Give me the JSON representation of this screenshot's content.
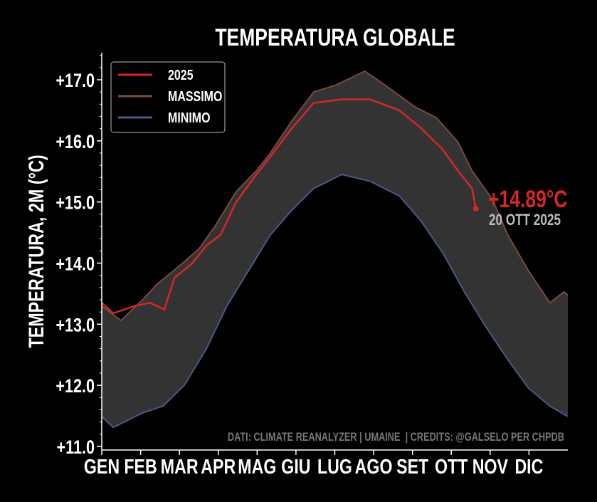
{
  "chart_data": {
    "type": "line",
    "title": "TEMPERATURA GLOBALE",
    "xlabel": "",
    "ylabel": "TEMPERATURA, 2M (°C)",
    "ylim": [
      11.0,
      17.0
    ],
    "xlim": [
      0,
      365
    ],
    "yticks": [
      11.0,
      12.0,
      13.0,
      14.0,
      15.0,
      16.0,
      17.0
    ],
    "ytick_labels": [
      "+11.0",
      "+12.0",
      "+13.0",
      "+14.0",
      "+15.0",
      "+16.0",
      "+17.0"
    ],
    "xtick_labels": [
      "GEN",
      "FEB",
      "MAR",
      "APR",
      "MAG",
      "GIU",
      "LUG",
      "AGO",
      "SET",
      "OTT",
      "NOV",
      "DIC"
    ],
    "legend": {
      "placement": "top-left",
      "entries": [
        "2025",
        "MASSIMO",
        "MINIMO"
      ]
    },
    "colors": {
      "2025": "#d62728",
      "massimo": "#7a4a3e",
      "minimo": "#4a5a85",
      "band": "#333333"
    },
    "series": [
      {
        "name": "2025",
        "x": [
          0,
          9,
          26,
          38,
          49,
          57,
          71,
          82,
          93,
          105,
          121,
          132,
          149,
          166,
          188,
          210,
          233,
          250,
          267,
          279,
          290,
          293
        ],
        "y": [
          13.35,
          13.18,
          13.3,
          13.35,
          13.24,
          13.76,
          14.0,
          14.29,
          14.46,
          14.99,
          15.45,
          15.74,
          16.21,
          16.62,
          16.68,
          16.68,
          16.5,
          16.21,
          15.86,
          15.51,
          15.22,
          14.89
        ]
      },
      {
        "name": "MASSIMO",
        "x": [
          0,
          15,
          32,
          43,
          60,
          76,
          88,
          105,
          121,
          132,
          149,
          166,
          183,
          206,
          222,
          245,
          262,
          279,
          290,
          306,
          318,
          334,
          351,
          362,
          365
        ],
        "y": [
          13.3,
          13.06,
          13.4,
          13.65,
          13.94,
          14.23,
          14.58,
          15.16,
          15.51,
          15.8,
          16.33,
          16.8,
          16.91,
          17.14,
          16.91,
          16.56,
          16.38,
          15.98,
          15.51,
          15.04,
          14.46,
          13.88,
          13.35,
          13.53,
          13.47
        ]
      },
      {
        "name": "MINIMO",
        "x": [
          0,
          9,
          32,
          48,
          65,
          82,
          98,
          115,
          132,
          149,
          166,
          188,
          210,
          233,
          250,
          267,
          284,
          301,
          318,
          334,
          351,
          365
        ],
        "y": [
          11.49,
          11.31,
          11.55,
          11.66,
          12.01,
          12.6,
          13.3,
          13.88,
          14.46,
          14.87,
          15.22,
          15.45,
          15.34,
          15.1,
          14.69,
          14.17,
          13.53,
          12.95,
          12.42,
          11.96,
          11.66,
          11.49
        ]
      }
    ],
    "annotations": {
      "value": "+14.89°C",
      "date": "20 OTT 2025",
      "credits": "DATI: CLIMATE REANALYZER | UMAINE  | CREDITS: @GALSELO PER CHPDB"
    }
  }
}
